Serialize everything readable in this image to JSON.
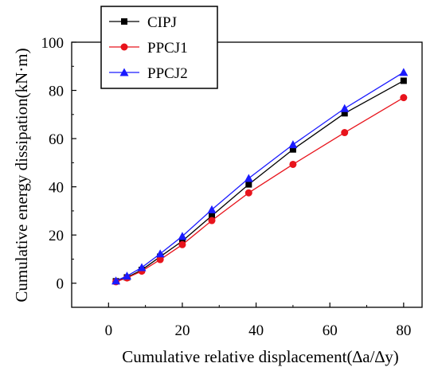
{
  "chart_data": {
    "type": "line",
    "xlabel": "Cumulative relative displacement(∆a/∆y)",
    "ylabel": "Cumulative energy dissipation(kN·m)",
    "xlim": [
      -10,
      85
    ],
    "ylim": [
      -10,
      100
    ],
    "xticks": [
      0,
      20,
      40,
      60,
      80
    ],
    "yticks": [
      0,
      20,
      40,
      60,
      80,
      100
    ],
    "x_tick_labels": [
      "0",
      "20",
      "40",
      "60",
      "80"
    ],
    "y_tick_labels": [
      "0",
      "20",
      "40",
      "60",
      "80",
      "100"
    ],
    "grid": false,
    "legend_position": "top-left",
    "series": [
      {
        "name": "CIPJ",
        "color": "#000000",
        "marker": "square",
        "x": [
          2,
          5,
          9,
          14,
          20,
          28,
          38,
          50,
          64,
          80
        ],
        "y": [
          0.8,
          2.4,
          5.5,
          11.0,
          17.5,
          28.0,
          41.0,
          55.5,
          70.5,
          84.0
        ]
      },
      {
        "name": "PPCJ1",
        "color": "#e8141c",
        "marker": "circle",
        "x": [
          2,
          5,
          9,
          14,
          20,
          28,
          38,
          50,
          64,
          80
        ],
        "y": [
          0.6,
          2.2,
          5.0,
          9.8,
          16.0,
          26.0,
          37.5,
          49.3,
          62.5,
          77.0
        ]
      },
      {
        "name": "PPCJ2",
        "color": "#1a1aff",
        "marker": "triangle",
        "x": [
          2,
          5,
          9,
          14,
          20,
          28,
          38,
          50,
          64,
          80
        ],
        "y": [
          1.0,
          3.0,
          6.5,
          12.2,
          19.5,
          30.5,
          43.5,
          57.5,
          72.5,
          87.5
        ]
      }
    ]
  }
}
